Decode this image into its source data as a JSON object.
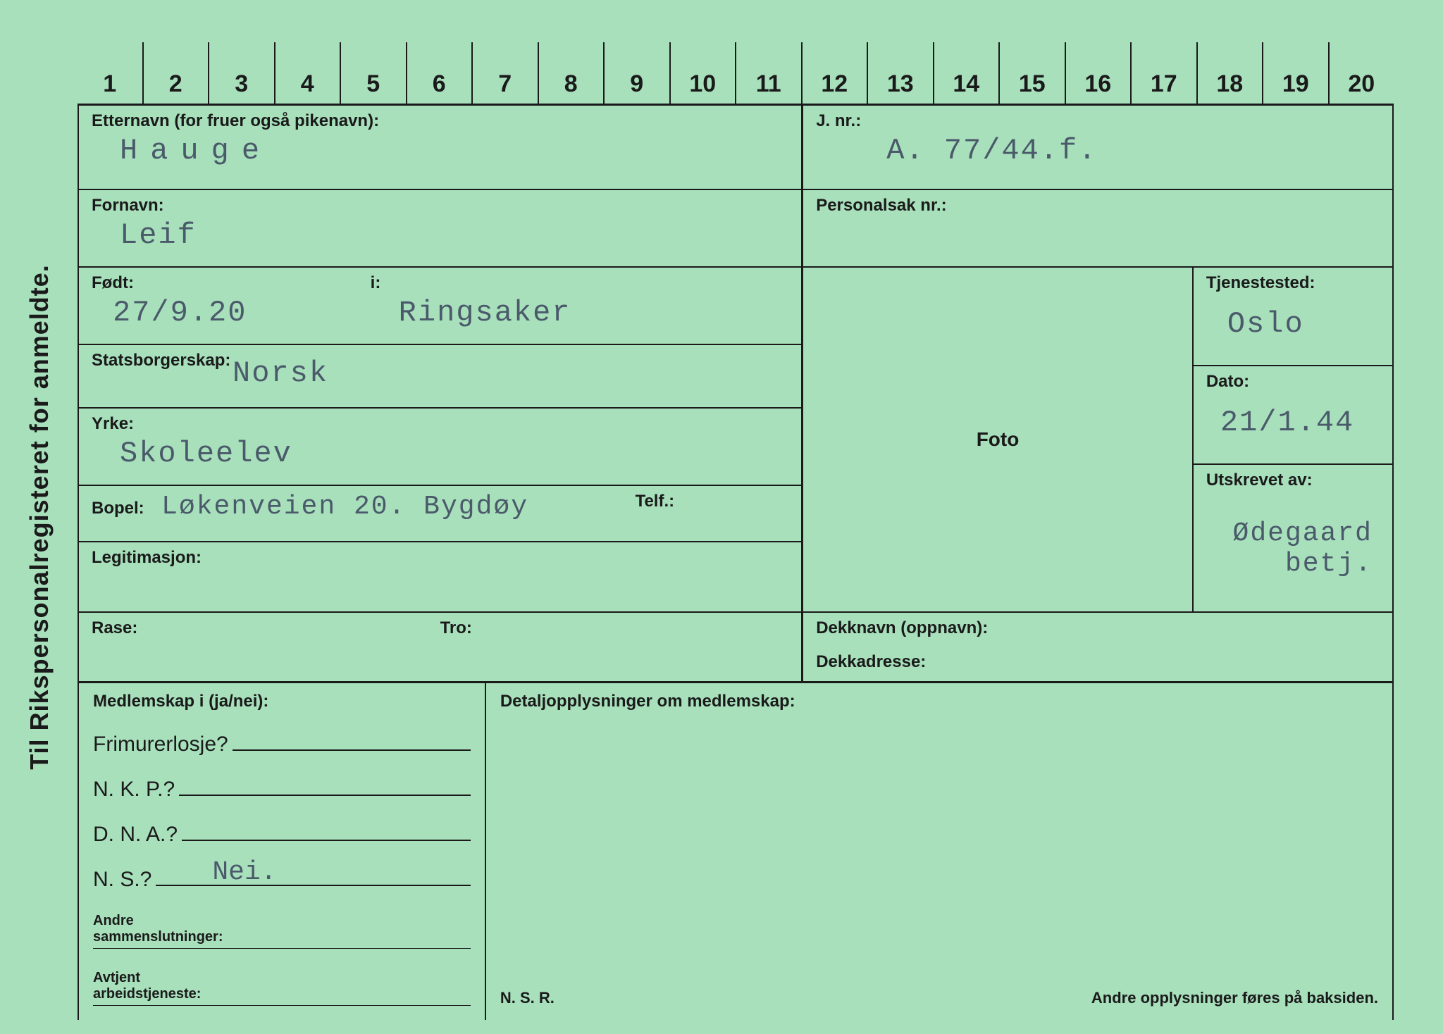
{
  "card": {
    "background_color": "#a8e0bc",
    "line_color": "#1a1a1a",
    "typed_color": "#4a5a6a"
  },
  "vertical_title": "Til Rikspersonalregisteret for anmeldte.",
  "ruler": [
    "1",
    "2",
    "3",
    "4",
    "5",
    "6",
    "7",
    "8",
    "9",
    "10",
    "11",
    "12",
    "13",
    "14",
    "15",
    "16",
    "17",
    "18",
    "19",
    "20"
  ],
  "labels": {
    "etternavn": "Etternavn (for fruer også pikenavn):",
    "fornavn": "Fornavn:",
    "fodt": "Født:",
    "i": "i:",
    "statsborgerskap": "Statsborgerskap:",
    "yrke": "Yrke:",
    "bopel": "Bopel:",
    "telf": "Telf.:",
    "legitimasjon": "Legitimasjon:",
    "rase": "Rase:",
    "tro": "Tro:",
    "jnr": "J. nr.:",
    "personalsak": "Personalsak nr.:",
    "foto": "Foto",
    "tjenestested": "Tjenestested:",
    "dato": "Dato:",
    "utskrevet": "Utskrevet av:",
    "dekknavn": "Dekknavn (oppnavn):",
    "dekkadresse": "Dekkadresse:",
    "medlemskap": "Medlemskap i (ja/nei):",
    "detaljopplysninger": "Detaljopplysninger om medlemskap:",
    "frimurerlosje": "Frimurerlosje?",
    "nkp": "N. K. P.?",
    "dna": "D. N. A.?",
    "ns": "N. S.?",
    "andre_samm": "Andre\nsammenslutninger:",
    "avtjent": "Avtjent\narbeidstjeneste:",
    "nsr": "N. S. R.",
    "footer": "Andre opplysninger føres på baksiden."
  },
  "values": {
    "etternavn": "Hauge",
    "fornavn": "Leif",
    "fodt": "27/9.20",
    "fodested": "Ringsaker",
    "statsborgerskap": "Norsk",
    "yrke": "Skoleelev",
    "bopel": "Løkenveien 20. Bygdøy",
    "telf": "",
    "legitimasjon": "",
    "rase": "",
    "tro": "",
    "jnr": "A. 77/44.f.",
    "personalsak": "",
    "tjenestested": "Oslo",
    "dato": "21/1.44",
    "utskrevet": "Ødegaard\nbetj.",
    "dekknavn": "",
    "dekkadresse": "",
    "frimurerlosje": "",
    "nkp": "",
    "dna": "",
    "ns": "Nei."
  }
}
